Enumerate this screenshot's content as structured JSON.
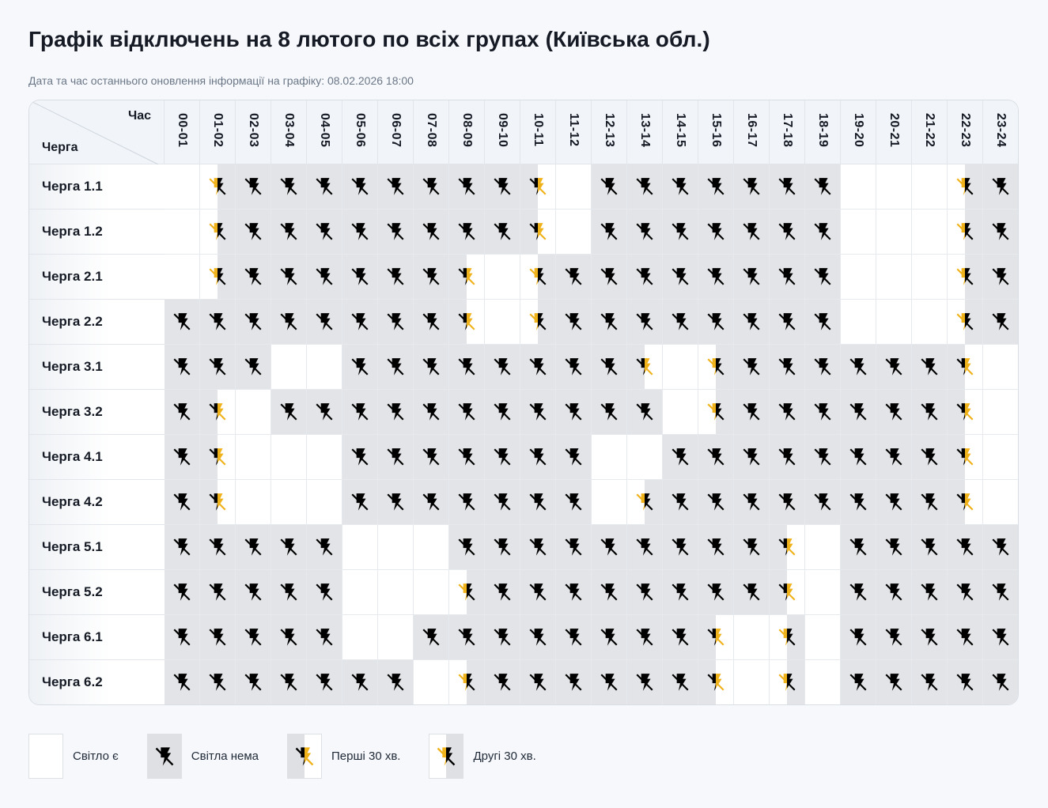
{
  "page": {
    "title": "Графік відключень на 8 лютого по всіх групах (Київська обл.)",
    "updated": "Дата та час останнього оновлення інформації на графіку: 08.02.2026 18:00"
  },
  "table": {
    "corner_hour_label": "Час",
    "corner_queue_label": "Черга",
    "hours": [
      "00-01",
      "01-02",
      "02-03",
      "03-04",
      "04-05",
      "05-06",
      "06-07",
      "07-08",
      "08-09",
      "09-10",
      "10-11",
      "11-12",
      "12-13",
      "13-14",
      "14-15",
      "15-16",
      "16-17",
      "17-18",
      "18-19",
      "19-20",
      "20-21",
      "21-22",
      "22-23",
      "23-24"
    ],
    "state_legend": {
      "Y": "power_on",
      "N": "power_off",
      "F": "first_30_min_off",
      "S": "second_30_min_off"
    },
    "rows": [
      {
        "label": "Черга 1.1",
        "states": [
          "Y",
          "S",
          "N",
          "N",
          "N",
          "N",
          "N",
          "N",
          "N",
          "N",
          "F",
          "Y",
          "N",
          "N",
          "N",
          "N",
          "N",
          "N",
          "N",
          "Y",
          "Y",
          "Y",
          "S",
          "N"
        ]
      },
      {
        "label": "Черга 1.2",
        "states": [
          "Y",
          "S",
          "N",
          "N",
          "N",
          "N",
          "N",
          "N",
          "N",
          "N",
          "F",
          "Y",
          "N",
          "N",
          "N",
          "N",
          "N",
          "N",
          "N",
          "Y",
          "Y",
          "Y",
          "S",
          "N"
        ]
      },
      {
        "label": "Черга 2.1",
        "states": [
          "Y",
          "S",
          "N",
          "N",
          "N",
          "N",
          "N",
          "N",
          "F",
          "Y",
          "S",
          "N",
          "N",
          "N",
          "N",
          "N",
          "N",
          "N",
          "N",
          "Y",
          "Y",
          "Y",
          "S",
          "N"
        ]
      },
      {
        "label": "Черга 2.2",
        "states": [
          "N",
          "N",
          "N",
          "N",
          "N",
          "N",
          "N",
          "N",
          "F",
          "Y",
          "S",
          "N",
          "N",
          "N",
          "N",
          "N",
          "N",
          "N",
          "N",
          "Y",
          "Y",
          "Y",
          "S",
          "N"
        ]
      },
      {
        "label": "Черга 3.1",
        "states": [
          "N",
          "N",
          "N",
          "Y",
          "Y",
          "N",
          "N",
          "N",
          "N",
          "N",
          "N",
          "N",
          "N",
          "F",
          "Y",
          "S",
          "N",
          "N",
          "N",
          "N",
          "N",
          "N",
          "F",
          "Y"
        ]
      },
      {
        "label": "Черга 3.2",
        "states": [
          "N",
          "F",
          "Y",
          "N",
          "N",
          "N",
          "N",
          "N",
          "N",
          "N",
          "N",
          "N",
          "N",
          "N",
          "Y",
          "S",
          "N",
          "N",
          "N",
          "N",
          "N",
          "N",
          "F",
          "Y"
        ]
      },
      {
        "label": "Черга 4.1",
        "states": [
          "N",
          "F",
          "Y",
          "Y",
          "Y",
          "N",
          "N",
          "N",
          "N",
          "N",
          "N",
          "N",
          "Y",
          "Y",
          "N",
          "N",
          "N",
          "N",
          "N",
          "N",
          "N",
          "N",
          "F",
          "Y"
        ]
      },
      {
        "label": "Черга 4.2",
        "states": [
          "N",
          "F",
          "Y",
          "Y",
          "Y",
          "N",
          "N",
          "N",
          "N",
          "N",
          "N",
          "N",
          "Y",
          "S",
          "N",
          "N",
          "N",
          "N",
          "N",
          "N",
          "N",
          "N",
          "F",
          "Y"
        ]
      },
      {
        "label": "Черга 5.1",
        "states": [
          "N",
          "N",
          "N",
          "N",
          "N",
          "Y",
          "Y",
          "Y",
          "N",
          "N",
          "N",
          "N",
          "N",
          "N",
          "N",
          "N",
          "N",
          "F",
          "Y",
          "N",
          "N",
          "N",
          "N",
          "N"
        ]
      },
      {
        "label": "Черга 5.2",
        "states": [
          "N",
          "N",
          "N",
          "N",
          "N",
          "Y",
          "Y",
          "Y",
          "S",
          "N",
          "N",
          "N",
          "N",
          "N",
          "N",
          "N",
          "N",
          "F",
          "Y",
          "N",
          "N",
          "N",
          "N",
          "N"
        ]
      },
      {
        "label": "Черга 6.1",
        "states": [
          "N",
          "N",
          "N",
          "N",
          "N",
          "Y",
          "Y",
          "N",
          "N",
          "N",
          "N",
          "N",
          "N",
          "N",
          "N",
          "F",
          "Y",
          "S",
          "Y",
          "N",
          "N",
          "N",
          "N",
          "N"
        ]
      },
      {
        "label": "Черга 6.2",
        "states": [
          "N",
          "N",
          "N",
          "N",
          "N",
          "N",
          "N",
          "Y",
          "S",
          "N",
          "N",
          "N",
          "N",
          "N",
          "N",
          "F",
          "Y",
          "S",
          "Y",
          "N",
          "N",
          "N",
          "N",
          "N"
        ]
      }
    ]
  },
  "legend": [
    {
      "state": "Y",
      "label": "Світло є"
    },
    {
      "state": "N",
      "label": "Світла нема"
    },
    {
      "state": "F",
      "label": "Перші 30 хв."
    },
    {
      "state": "S",
      "label": "Другі 30 хв."
    }
  ],
  "colors": {
    "off_bg": "#e3e4e7",
    "on_bg": "#ffffff",
    "icon_dark": "#000000",
    "icon_accent": "#f0b21a"
  },
  "icons": {
    "outage": "no-power-bolt-icon"
  }
}
